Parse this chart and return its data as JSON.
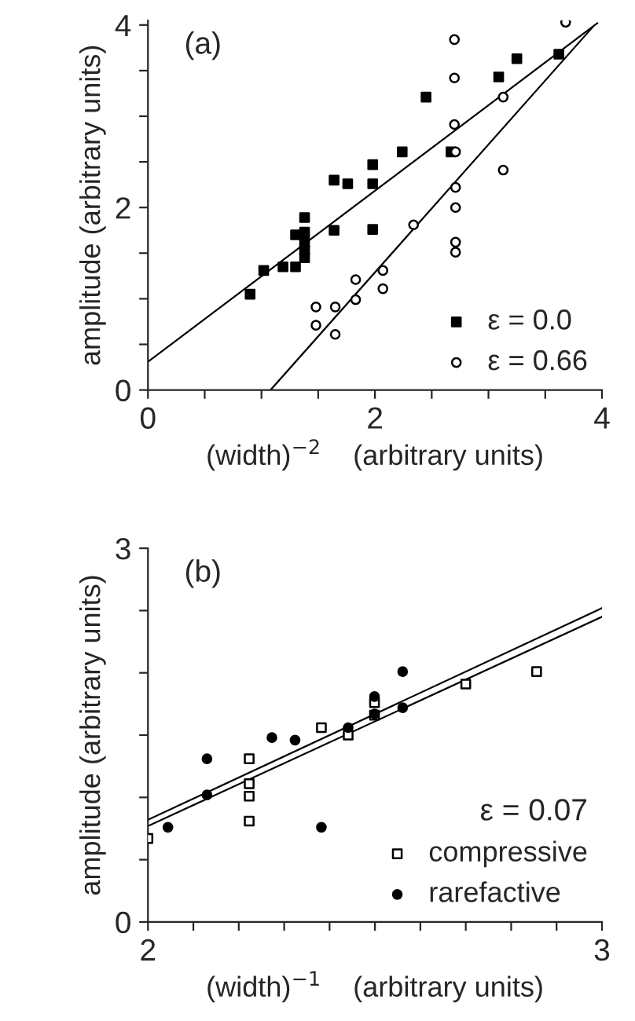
{
  "chart_data": [
    {
      "type": "scatter",
      "xlabel": "(width)$^{−2}$    (arbitrary units)",
      "ylabel": "amplitude (arbitrary units)",
      "annotations": [
        "(a)"
      ],
      "legend": "bottom right",
      "grid": false,
      "xlim": [
        0,
        4
      ],
      "ylim": [
        0,
        4.05
      ],
      "xticks": [
        0,
        {
          "value": 0.5,
          "label": null
        },
        {
          "value": 1,
          "label": null
        },
        {
          "value": 1.5,
          "label": null
        },
        2,
        {
          "value": 2.5,
          "label": null
        },
        {
          "value": 3,
          "label": null
        },
        {
          "value": 3.5,
          "label": null
        },
        4
      ],
      "yticks": [
        0,
        {
          "value": 0.5,
          "label": null
        },
        {
          "value": 1,
          "label": null
        },
        {
          "value": 1.5,
          "label": null
        },
        2,
        {
          "value": 2.5,
          "label": null
        },
        {
          "value": 3,
          "label": null
        },
        {
          "value": 3.5,
          "label": null
        },
        4
      ],
      "series": [
        {
          "name": "ε = 0.0",
          "color": "#000000",
          "marker": "square",
          "x": [
            0.9,
            1.02,
            1.19,
            1.3,
            1.3,
            1.38,
            1.38,
            1.38,
            1.38,
            1.38,
            1.64,
            1.76,
            1.64,
            1.98,
            1.98,
            1.98,
            2.24,
            2.45,
            2.67,
            3.09,
            3.25,
            3.62
          ],
          "values": [
            1.05,
            1.31,
            1.35,
            1.35,
            1.7,
            1.89,
            1.73,
            1.62,
            1.53,
            1.45,
            2.3,
            2.26,
            1.75,
            2.47,
            2.26,
            1.76,
            2.61,
            3.21,
            2.61,
            3.43,
            3.63,
            3.68
          ]
        },
        {
          "name": "ε = 0.66",
          "color": "#ffffff",
          "marker": "circle",
          "x": [
            3.68,
            2.7,
            2.7,
            2.7,
            2.71,
            2.71,
            2.71,
            2.71,
            2.71,
            3.13,
            3.13,
            2.34,
            2.07,
            2.07,
            1.83,
            1.83,
            1.48,
            1.65,
            1.48,
            1.65
          ],
          "values": [
            4.03,
            3.84,
            3.42,
            2.91,
            2.61,
            2.22,
            2.0,
            1.62,
            1.51,
            3.21,
            2.41,
            1.81,
            1.31,
            1.11,
            1.21,
            0.99,
            0.91,
            0.91,
            0.71,
            0.61
          ]
        },
        {
          "type": "line",
          "color": "#000000",
          "x": [
            0,
            3.96
          ],
          "values": [
            0.31,
            4.02
          ]
        },
        {
          "type": "line",
          "color": "#000000",
          "x": [
            1.08,
            3.92
          ],
          "values": [
            0,
            3.98
          ]
        }
      ]
    },
    {
      "type": "scatter",
      "xlabel": "(width)$^{−1}$    (arbitrary units)",
      "ylabel": "amplitude (arbitrary units)",
      "annotations": [
        "(b)"
      ],
      "legend": "bottom right",
      "legend_title": "ε = 0.07",
      "grid": false,
      "xlim": [
        2,
        3
      ],
      "ylim": [
        0,
        3
      ],
      "xticks": [
        2,
        {
          "value": 2.1,
          "label": null
        },
        {
          "value": 2.2,
          "label": null
        },
        {
          "value": 2.3,
          "label": null
        },
        {
          "value": 2.4,
          "label": null
        },
        {
          "value": 2.5,
          "label": null
        },
        {
          "value": 2.6,
          "label": null
        },
        {
          "value": 2.7,
          "label": null
        },
        {
          "value": 2.8,
          "label": null
        },
        {
          "value": 2.9,
          "label": null
        },
        3
      ],
      "yticks": [
        0,
        {
          "value": 0.5,
          "label": null
        },
        {
          "value": 1,
          "label": null
        },
        {
          "value": 1.5,
          "label": null
        },
        {
          "value": 2,
          "label": null
        },
        {
          "value": 2.5,
          "label": null
        },
        3
      ],
      "series": [
        {
          "name": "compressive",
          "color": "#ffffff",
          "marker": "square",
          "x": [
            2.0,
            2.223,
            2.223,
            2.223,
            2.223,
            2.382,
            2.441,
            2.499,
            2.499,
            2.7,
            2.856
          ],
          "values": [
            0.67,
            1.31,
            1.11,
            1.01,
            0.81,
            1.56,
            1.5,
            1.76,
            1.66,
            1.91,
            2.01
          ]
        },
        {
          "name": "rarefactive",
          "color": "#000000",
          "marker": "circle",
          "x": [
            2.044,
            2.13,
            2.13,
            2.273,
            2.324,
            2.382,
            2.441,
            2.499,
            2.499,
            2.561,
            2.561
          ],
          "values": [
            0.76,
            1.31,
            1.02,
            1.48,
            1.46,
            0.76,
            1.56,
            1.81,
            1.67,
            2.01,
            1.72
          ]
        },
        {
          "type": "line",
          "color": "#000000",
          "x": [
            2,
            3
          ],
          "values": [
            0.82,
            2.52
          ]
        },
        {
          "type": "line",
          "color": "#000000",
          "x": [
            2,
            3
          ],
          "values": [
            0.77,
            2.45
          ]
        }
      ]
    }
  ]
}
